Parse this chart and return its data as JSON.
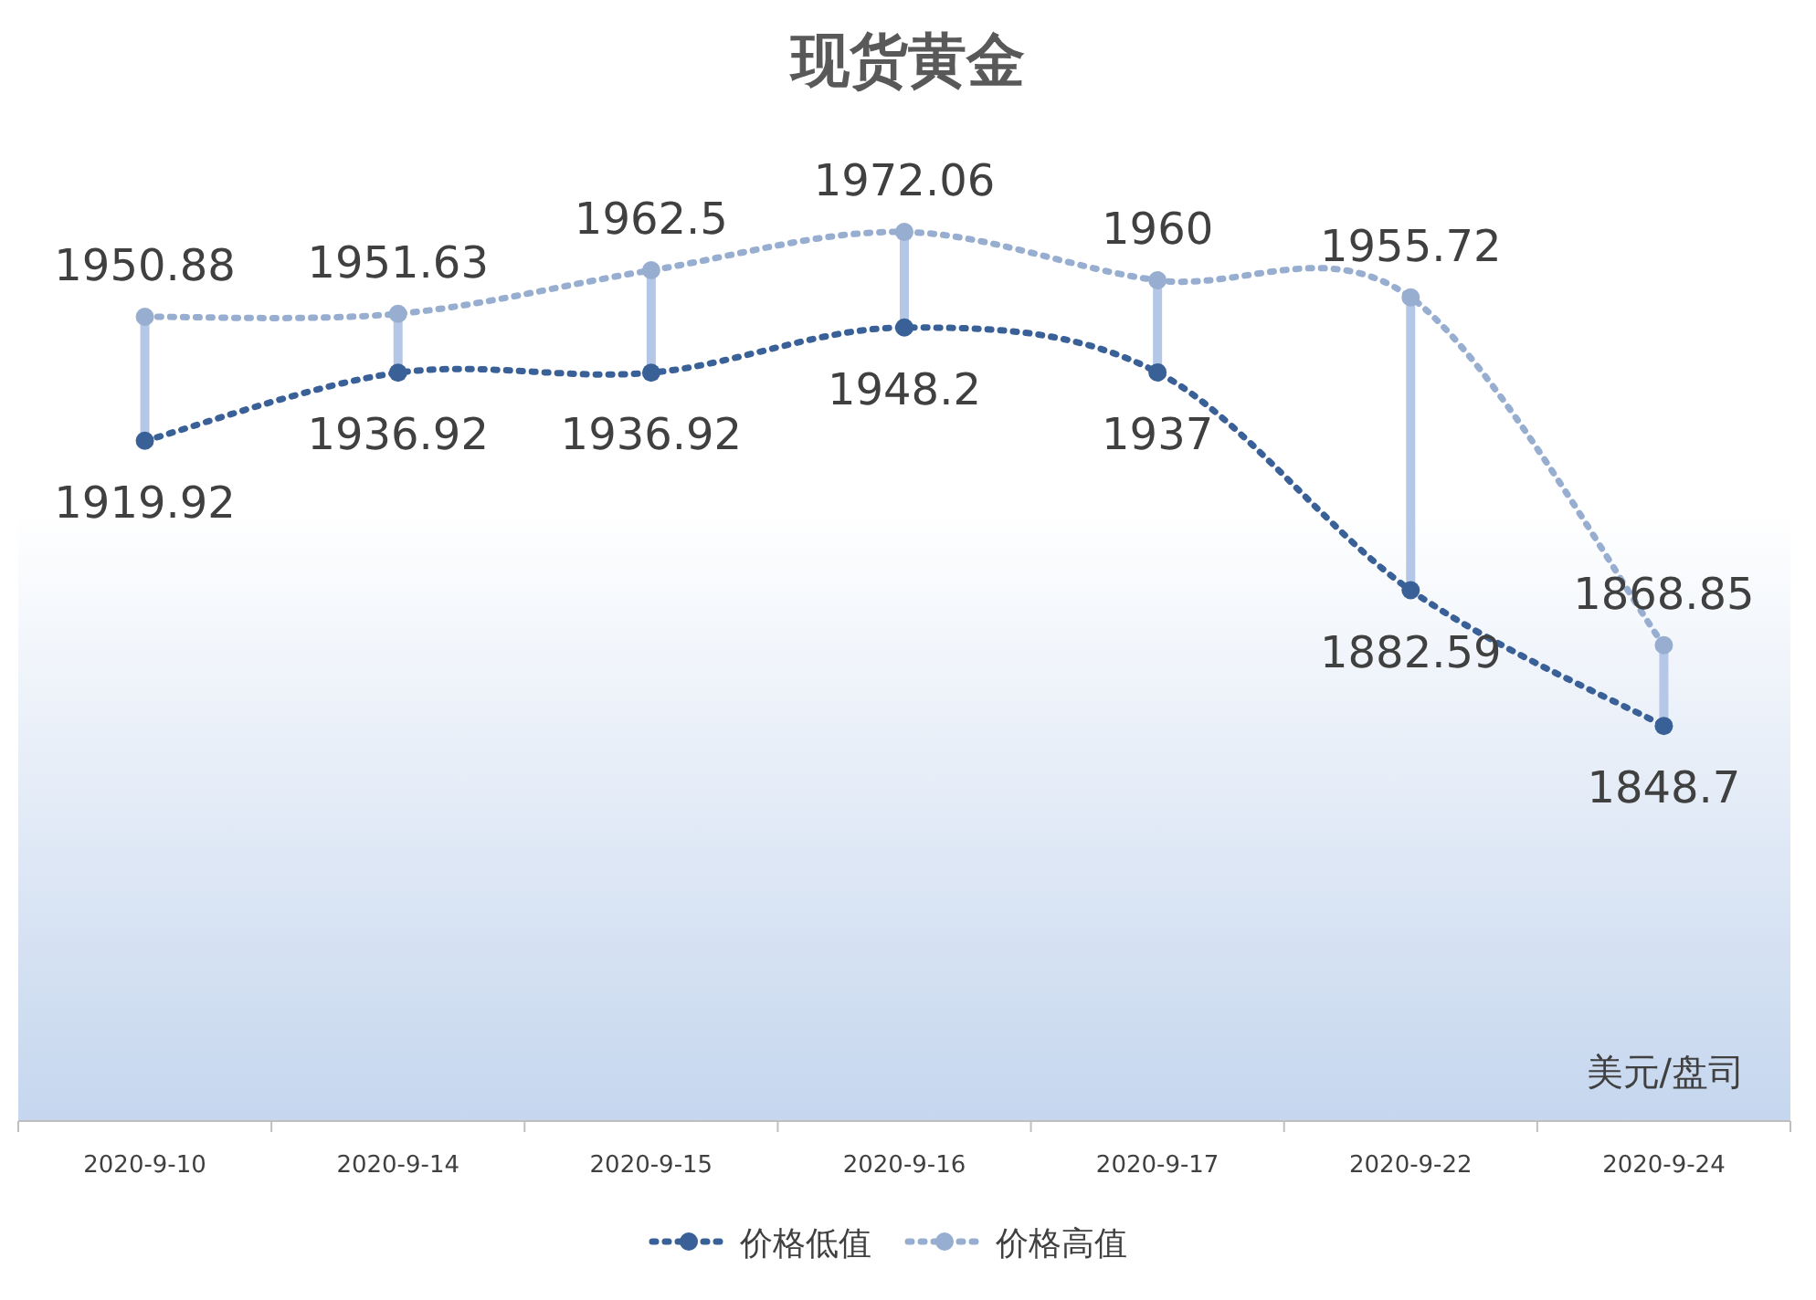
{
  "chart_data": {
    "type": "line",
    "title": "现货黄金",
    "categories": [
      "2020-9-10",
      "2020-9-14",
      "2020-9-15",
      "2020-9-16",
      "2020-9-17",
      "2020-9-22",
      "2020-9-24"
    ],
    "series": [
      {
        "name": "价格低值",
        "color": "#3a6197",
        "values": [
          1919.92,
          1936.92,
          1936.92,
          1948.2,
          1937,
          1882.59,
          1848.7
        ]
      },
      {
        "name": "价格高值",
        "color": "#97aed0",
        "values": [
          1950.88,
          1951.63,
          1962.5,
          1972.06,
          1960,
          1955.72,
          1868.85
        ]
      }
    ],
    "data_labels": true,
    "legend": "bottom",
    "marker": "circle",
    "line_style": "dotted",
    "annotations": [
      "美元/盘司"
    ]
  }
}
